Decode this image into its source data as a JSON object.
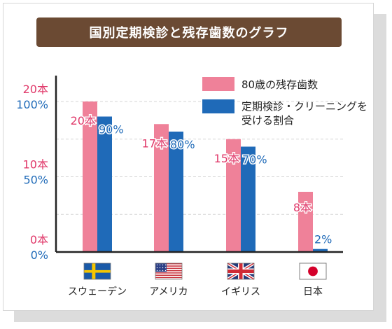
{
  "title": "国別定期検診と残存歯数のグラフ",
  "colors": {
    "title_bg": "#6b4a33",
    "teeth": "#ef8199",
    "checkup": "#1f6ab8",
    "teeth_text": "#e0396a",
    "checkup_text": "#1f6ab8",
    "axis": "#222222",
    "grid": "#d6d6d6"
  },
  "legend": {
    "teeth": "80歳の残存歯数",
    "checkup_line1": "定期検診・クリーニングを",
    "checkup_line2": "受ける割合"
  },
  "chart_data": {
    "type": "bar",
    "categories": [
      "スウェーデン",
      "アメリカ",
      "イギリス",
      "日本"
    ],
    "flags": [
      "sweden-flag-icon",
      "usa-flag-icon",
      "uk-flag-icon",
      "japan-flag-icon"
    ],
    "series": [
      {
        "name": "80歳の残存歯数",
        "unit": "本",
        "values": [
          20,
          17,
          15,
          8
        ],
        "labels": [
          "20本",
          "17本",
          "15本",
          "8本"
        ],
        "ylim": [
          0,
          20
        ],
        "ticks": [
          "0本",
          "10本",
          "20本"
        ]
      },
      {
        "name": "定期検診・クリーニングを受ける割合",
        "unit": "%",
        "values": [
          90,
          80,
          70,
          2
        ],
        "labels": [
          "90%",
          "80%",
          "70%",
          "2%"
        ],
        "ylim": [
          0,
          100
        ],
        "ticks": [
          "0%",
          "50%",
          "100%"
        ]
      }
    ],
    "grid": true,
    "legend_position": "top-right"
  }
}
